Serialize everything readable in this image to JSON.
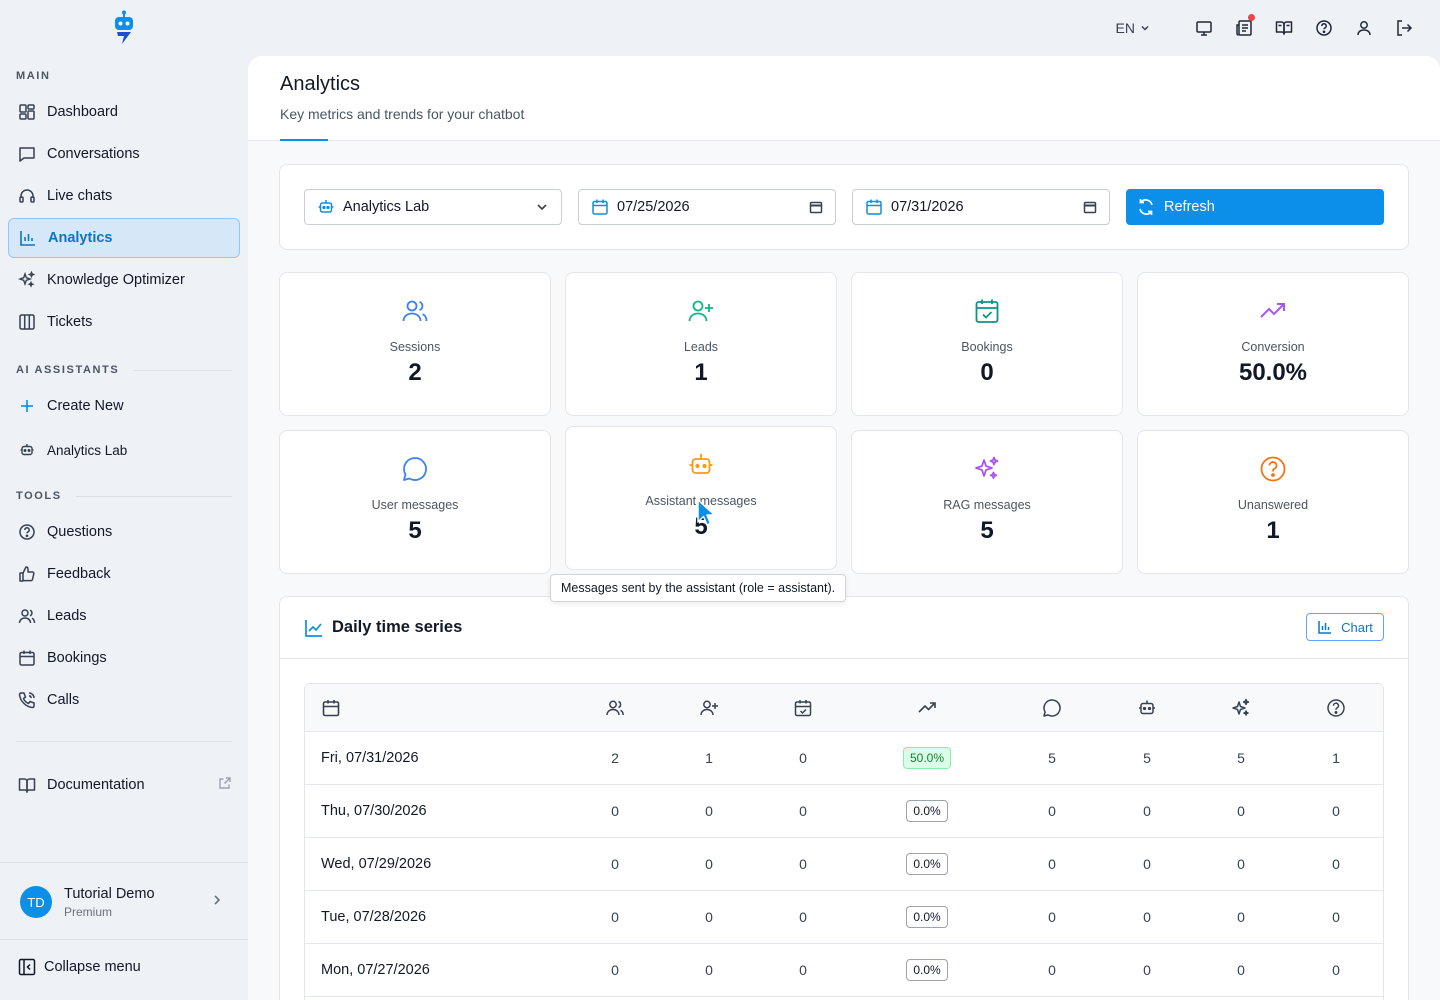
{
  "topbar": {
    "language": "EN",
    "icons": [
      "monitor-icon",
      "news-icon",
      "book-icon",
      "help-icon",
      "user-icon",
      "logout-icon"
    ]
  },
  "sidebar": {
    "sections": {
      "main": "MAIN",
      "ai_assistants": "AI ASSISTANTS",
      "tools": "TOOLS"
    },
    "main_items": [
      {
        "label": "Dashboard",
        "icon": "dashboard-icon"
      },
      {
        "label": "Conversations",
        "icon": "chat-icon"
      },
      {
        "label": "Live chats",
        "icon": "headset-icon"
      },
      {
        "label": "Analytics",
        "icon": "bar-chart-icon",
        "active": true
      },
      {
        "label": "Knowledge Optimizer",
        "icon": "sparkles-icon"
      },
      {
        "label": "Tickets",
        "icon": "columns-icon"
      }
    ],
    "assistant_items": [
      {
        "label": "Create New",
        "icon": "plus-icon"
      },
      {
        "label": "Analytics Lab",
        "icon": "bot-icon"
      }
    ],
    "tool_items": [
      {
        "label": "Questions",
        "icon": "help-icon"
      },
      {
        "label": "Feedback",
        "icon": "thumbs-up-icon"
      },
      {
        "label": "Leads",
        "icon": "users-icon"
      },
      {
        "label": "Bookings",
        "icon": "calendar-icon"
      },
      {
        "label": "Calls",
        "icon": "phone-icon"
      }
    ],
    "documentation": "Documentation",
    "user": {
      "initials": "TD",
      "name": "Tutorial Demo",
      "plan": "Premium"
    },
    "collapse": "Collapse menu"
  },
  "header": {
    "title": "Analytics",
    "subtitle": "Key metrics and trends for your chatbot"
  },
  "filters": {
    "assistant": "Analytics Lab",
    "start_date": "07/25/2026",
    "end_date": "07/31/2026",
    "refresh": "Refresh"
  },
  "stats": [
    {
      "label": "Sessions",
      "value": "2",
      "icon": "users-icon",
      "color": "#3b82f6"
    },
    {
      "label": "Leads",
      "value": "1",
      "icon": "user-plus-icon",
      "color": "#10b981"
    },
    {
      "label": "Bookings",
      "value": "0",
      "icon": "calendar-check-icon",
      "color": "#0d9488"
    },
    {
      "label": "Conversion",
      "value": "50.0%",
      "icon": "trending-up-icon",
      "color": "#a855f7"
    },
    {
      "label": "User messages",
      "value": "5",
      "icon": "message-circle-icon",
      "color": "#3b82f6"
    },
    {
      "label": "Assistant messages",
      "value": "5",
      "icon": "bot-icon",
      "color": "#f59e0b"
    },
    {
      "label": "RAG messages",
      "value": "5",
      "icon": "sparkles-icon",
      "color": "#a855f7"
    },
    {
      "label": "Unanswered",
      "value": "1",
      "icon": "help-circle-icon",
      "color": "#f97316"
    }
  ],
  "tooltip": "Messages sent by the assistant (role = assistant).",
  "timeseries": {
    "title": "Daily time series",
    "chart_button": "Chart",
    "rows": [
      {
        "date": "Fri, 07/31/2026",
        "sessions": "2",
        "leads": "1",
        "bookings": "0",
        "conversion": "50.0%",
        "user": "5",
        "assistant": "5",
        "rag": "5",
        "unanswered": "1",
        "positive": true
      },
      {
        "date": "Thu, 07/30/2026",
        "sessions": "0",
        "leads": "0",
        "bookings": "0",
        "conversion": "0.0%",
        "user": "0",
        "assistant": "0",
        "rag": "0",
        "unanswered": "0",
        "positive": false
      },
      {
        "date": "Wed, 07/29/2026",
        "sessions": "0",
        "leads": "0",
        "bookings": "0",
        "conversion": "0.0%",
        "user": "0",
        "assistant": "0",
        "rag": "0",
        "unanswered": "0",
        "positive": false
      },
      {
        "date": "Tue, 07/28/2026",
        "sessions": "0",
        "leads": "0",
        "bookings": "0",
        "conversion": "0.0%",
        "user": "0",
        "assistant": "0",
        "rag": "0",
        "unanswered": "0",
        "positive": false
      },
      {
        "date": "Mon, 07/27/2026",
        "sessions": "0",
        "leads": "0",
        "bookings": "0",
        "conversion": "0.0%",
        "user": "0",
        "assistant": "0",
        "rag": "0",
        "unanswered": "0",
        "positive": false
      }
    ]
  },
  "colors": {
    "accent": "#0b8fe8",
    "active_bg": "#d6e8f7",
    "positive": "#15803d"
  }
}
